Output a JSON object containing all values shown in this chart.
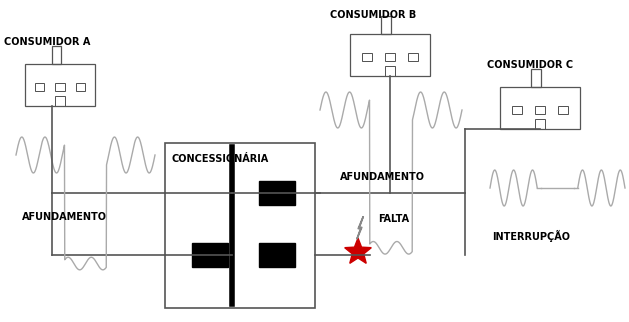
{
  "bg_color": "#ffffff",
  "black": "#000000",
  "gray": "#555555",
  "light_gray": "#aaaaaa",
  "red_star": "#cc0000",
  "text_color": "#000000",
  "labels": {
    "consumidor_a": "CONSUMIDOR A",
    "consumidor_b": "CONSUMIDOR B",
    "consumidor_c": "CONSUMIDOR C",
    "concessionaria": "CONCESSIONÁRIA",
    "afundamento_a": "AFUNDAMENTO",
    "afundamento_b": "AFUNDAMENTO",
    "falta": "FALTA",
    "interrupcao": "INTERRUPÇÃO"
  },
  "font_size": 7.0,
  "font_size_sm": 6.5
}
